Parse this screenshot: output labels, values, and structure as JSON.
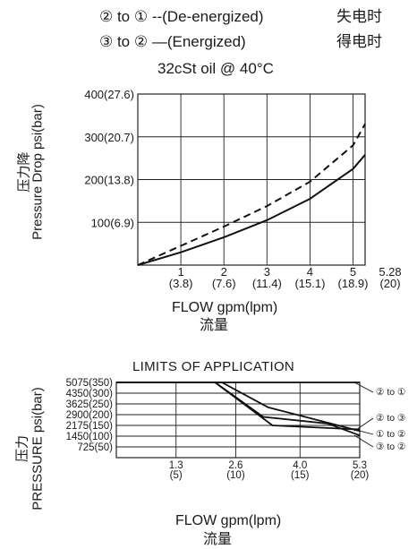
{
  "header": {
    "legend1_left": "② to ① --(De-energized)",
    "legend1_right": "失电时",
    "legend2_left": "③ to ② —(Energized)",
    "legend2_right": "得电时",
    "subtitle": "32cSt oil @ 40°C"
  },
  "chart_data": [
    {
      "type": "line",
      "title": "32cSt oil @ 40°C",
      "xlabel": "FLOW gpm(lpm)",
      "xlabel_cn": "流量",
      "ylabel": "Pressure Drop psi(bar)",
      "ylabel_cn": "压力降",
      "xlim": [
        0,
        5.28
      ],
      "ylim": [
        0,
        400
      ],
      "grid": true,
      "x_ticks": [
        {
          "value": 1,
          "top": "1",
          "bottom": "(3.8)"
        },
        {
          "value": 2,
          "top": "2",
          "bottom": "(7.6)"
        },
        {
          "value": 3,
          "top": "3",
          "bottom": "(11.4)"
        },
        {
          "value": 4,
          "top": "4",
          "bottom": "(15.1)"
        },
        {
          "value": 5,
          "top": "5",
          "bottom": "(18.9)"
        },
        {
          "value": 5.28,
          "top": "5.28",
          "bottom": "(20)"
        }
      ],
      "y_ticks": [
        {
          "value": 100,
          "label": "100(6.9)"
        },
        {
          "value": 200,
          "label": "200(13.8)"
        },
        {
          "value": 300,
          "label": "300(20.7)"
        },
        {
          "value": 400,
          "label": "400(27.6)"
        }
      ],
      "series": [
        {
          "name": "② to ① (De-energized)",
          "style": "dashed",
          "x": [
            0,
            1,
            2,
            3,
            4,
            5,
            5.28
          ],
          "y": [
            0,
            45,
            90,
            138,
            195,
            280,
            330
          ]
        },
        {
          "name": "③ to ② (Energized)",
          "style": "solid",
          "x": [
            0,
            1,
            2,
            3,
            4,
            5,
            5.28
          ],
          "y": [
            0,
            30,
            65,
            105,
            155,
            225,
            258
          ]
        }
      ]
    },
    {
      "type": "line",
      "title": "LIMITS OF APPLICATION",
      "xlabel": "FLOW gpm(lpm)",
      "xlabel_cn": "流量",
      "ylabel": "PRESSURE psi(bar)",
      "ylabel_cn": "压力",
      "xlim": [
        0,
        5.3
      ],
      "ylim": [
        0,
        5075
      ],
      "grid": true,
      "x_ticks": [
        {
          "value": 1.3,
          "top": "1.3",
          "bottom": "(5)"
        },
        {
          "value": 2.6,
          "top": "2.6",
          "bottom": "(10)"
        },
        {
          "value": 4.0,
          "top": "4.0",
          "bottom": "(15)"
        },
        {
          "value": 5.3,
          "top": "5.3",
          "bottom": "(20)"
        }
      ],
      "y_ticks": [
        {
          "value": 725,
          "label": "725(50)"
        },
        {
          "value": 1450,
          "label": "1450(100)"
        },
        {
          "value": 2175,
          "label": "2175(150)"
        },
        {
          "value": 2900,
          "label": "2900(200)"
        },
        {
          "value": 3625,
          "label": "3625(250)"
        },
        {
          "value": 4350,
          "label": "4350(300)"
        },
        {
          "value": 5075,
          "label": "5075(350)"
        }
      ],
      "series": [
        {
          "name": "② to ①",
          "x": [
            0,
            5.3
          ],
          "y": [
            5075,
            5075
          ]
        },
        {
          "name": "② to ③",
          "x": [
            0,
            2.3,
            3.3,
            5.3
          ],
          "y": [
            5075,
            5075,
            3400,
            1800
          ]
        },
        {
          "name": "① to ②",
          "x": [
            0,
            2.15,
            3.4,
            5.3
          ],
          "y": [
            5075,
            5075,
            2175,
            1900
          ]
        },
        {
          "name": "③ to ②",
          "x": [
            0,
            2.15,
            3.2,
            4.6,
            5.3
          ],
          "y": [
            5075,
            5075,
            2750,
            2300,
            1500
          ]
        }
      ]
    }
  ]
}
